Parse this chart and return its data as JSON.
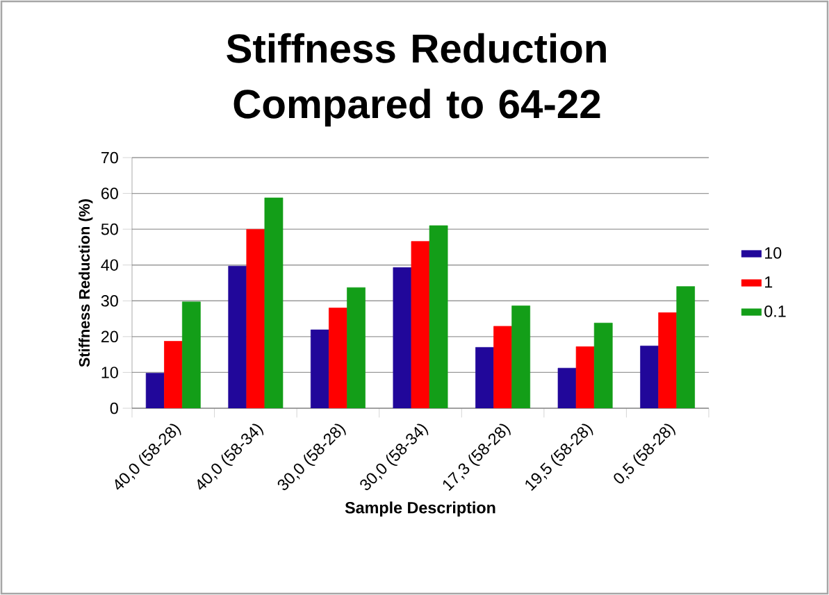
{
  "chart_data": {
    "type": "bar",
    "title": "Stiffness Reduction Compared to 64-22",
    "xlabel": "Sample Description",
    "ylabel": "Stiffness Reduction (%)",
    "categories": [
      "40,0 (58-28)",
      "40,0 (58-34)",
      "30,0 (58-28)",
      "30,0 (58-34)",
      "17,3 (58-28)",
      "19,5 (58-28)",
      "0,5 (58-28)"
    ],
    "series": [
      {
        "name": "10",
        "color": "#21079a",
        "values": [
          9.8,
          39.7,
          21.9,
          39.3,
          17.0,
          11.2,
          17.4
        ]
      },
      {
        "name": "1",
        "color": "#ff0000",
        "values": [
          18.7,
          50,
          28.0,
          46.6,
          22.9,
          17.2,
          26.7
        ]
      },
      {
        "name": "0.1",
        "color": "#139e18",
        "values": [
          29.7,
          58.8,
          33.7,
          51.0,
          28.6,
          23.8,
          34.0
        ]
      }
    ],
    "ylim": [
      0,
      70
    ],
    "yticks": [
      0,
      10,
      20,
      30,
      40,
      50,
      60,
      70
    ],
    "grid": "y",
    "legend": "right"
  }
}
